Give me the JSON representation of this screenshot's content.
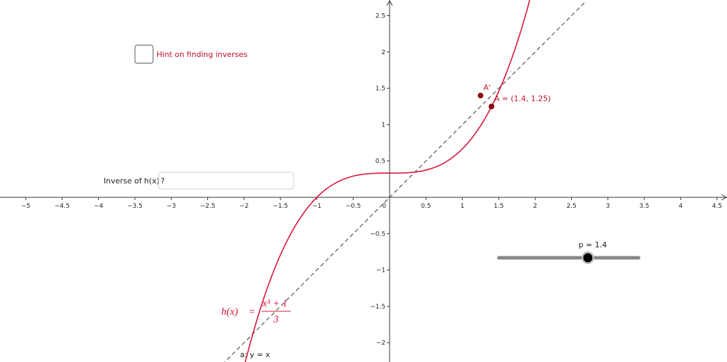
{
  "checkbox": {
    "label": "Hint on finding inverses"
  },
  "input": {
    "label": "Inverse of h(x)",
    "value": "?"
  },
  "slider": {
    "label": "p = 1.4"
  },
  "axes": {
    "origin": "0",
    "xticks": [
      {
        "value": -5,
        "label": "−5"
      },
      {
        "value": -4.5,
        "label": "−4.5"
      },
      {
        "value": -4,
        "label": "−4"
      },
      {
        "value": -3.5,
        "label": "−3.5"
      },
      {
        "value": -3,
        "label": "−3"
      },
      {
        "value": -2.5,
        "label": "−2.5"
      },
      {
        "value": -2,
        "label": "−2"
      },
      {
        "value": -1.5,
        "label": "−1.5"
      },
      {
        "value": -1,
        "label": "−1"
      },
      {
        "value": -0.5,
        "label": "−0.5"
      },
      0.5,
      1,
      1.5,
      2,
      2.5,
      3,
      3.5,
      4,
      4.5
    ],
    "yticks": [
      {
        "value": -2,
        "label": "−2"
      },
      {
        "value": -1.5,
        "label": "−1.5"
      },
      {
        "value": -1,
        "label": "−1"
      },
      {
        "value": -0.5,
        "label": "−0.5"
      },
      0.5,
      1,
      1.5,
      2,
      2.5
    ]
  },
  "points": [
    {
      "label": "A = (1.4, 1.25)",
      "x": 1.4,
      "y": 1.25
    },
    {
      "label": "A'",
      "x": 1.25,
      "y": 1.4
    }
  ],
  "formula": {
    "lhs": "h(x)",
    "eq": "=",
    "numerator": "x³ + 1",
    "denominator": "3"
  },
  "line_label": "a: y = x"
}
